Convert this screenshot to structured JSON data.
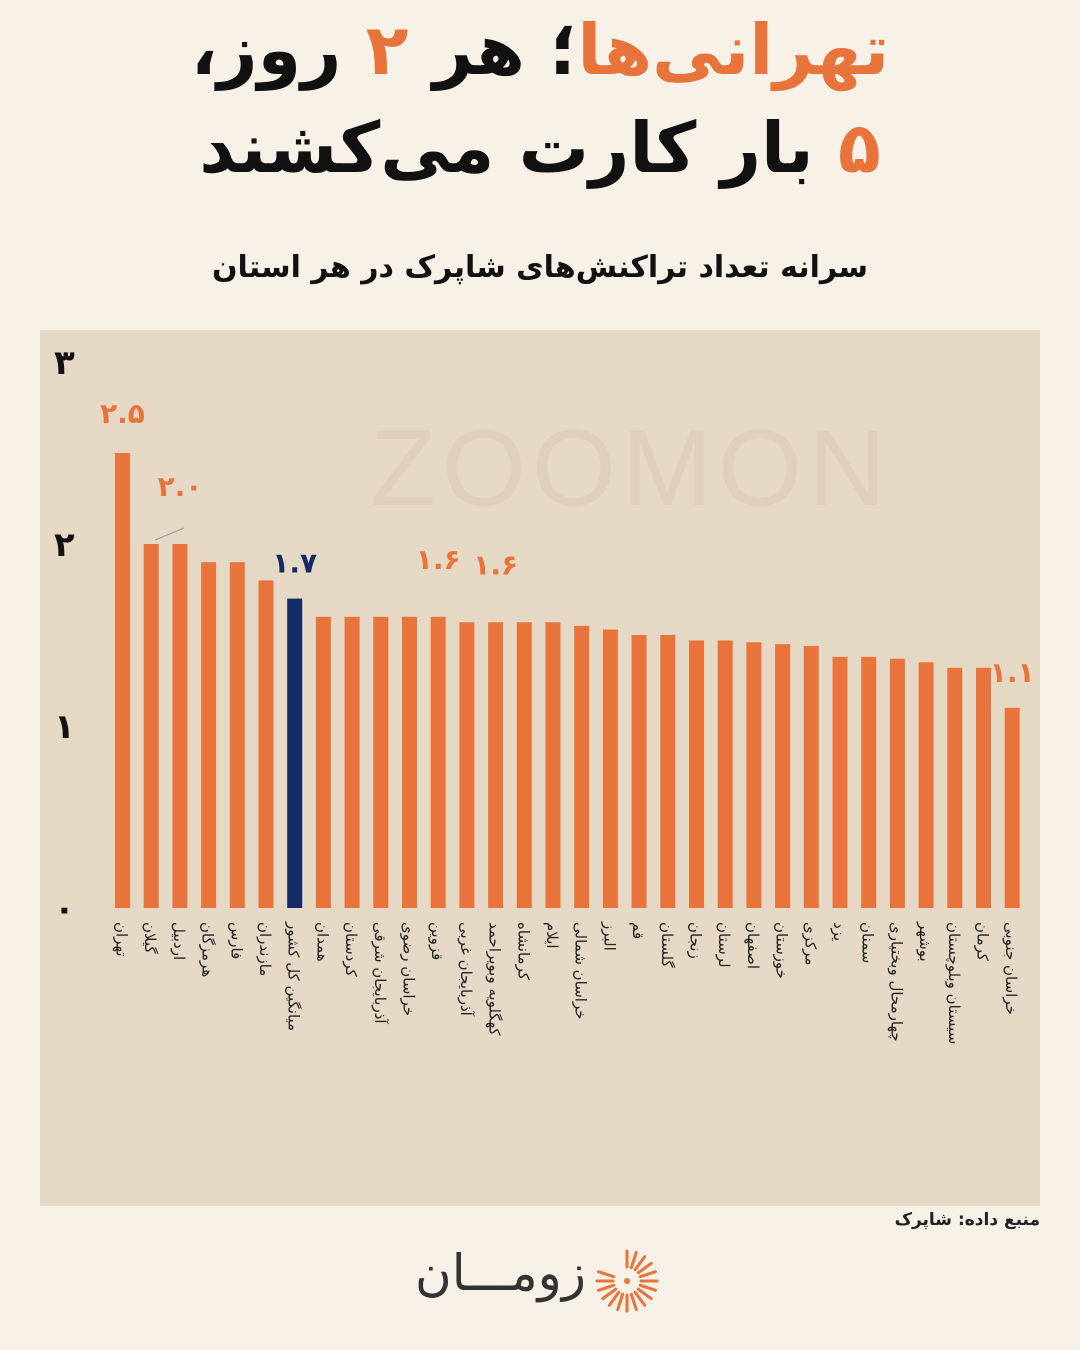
{
  "title": {
    "line1_orange": "تهرانی‌ها",
    "line1_sep": "؛ هر ",
    "line1_num": "۲",
    "line1_rest": " روز،",
    "line2_num": "۵",
    "line2_rest": " بار کارت می‌کشند"
  },
  "watermark": "ZOOMON",
  "source": "منبع داده: شاپرک",
  "brand": {
    "name": "زومـــان",
    "logo_icon": "sunburst-logo-icon"
  },
  "colors": {
    "bar": "#e8743b",
    "highlight": "#152b63",
    "panel": "#e5d8c5",
    "background": "#f8f1e8"
  },
  "chart_data": {
    "type": "bar",
    "title": "سرانه تعداد تراکنش‌های شاپرک در هر استان",
    "xlabel": "",
    "ylabel": "",
    "ylim": [
      0,
      3
    ],
    "yticks": [
      "۰",
      "۱",
      "۲",
      "۳"
    ],
    "grid": false,
    "categories": [
      "تهران",
      "گیلان",
      "اردبیل",
      "هرمزگان",
      "فارس",
      "مازندران",
      "میانگین کل کشور",
      "همدان",
      "کردستان",
      "آذربایجان شرقی",
      "خراسان رضوی",
      "قزوین",
      "آذربایجان غربی",
      "کهگلویه وبویراحمد",
      "کرمانشاه",
      "ایلام",
      "خراسان شمالی",
      "البرز",
      "قم",
      "گلستان",
      "زنجان",
      "لرستان",
      "اصفهان",
      "خوزستان",
      "مرکزی",
      "یزد",
      "سمنان",
      "چهارمحال وبختیاری",
      "بوشهر",
      "سیستان وبلوچستان",
      "کرمان",
      "خراسان جنوبی"
    ],
    "values": [
      2.5,
      2.0,
      2.0,
      1.9,
      1.9,
      1.8,
      1.7,
      1.6,
      1.6,
      1.6,
      1.6,
      1.6,
      1.57,
      1.57,
      1.57,
      1.57,
      1.55,
      1.53,
      1.5,
      1.5,
      1.47,
      1.47,
      1.46,
      1.45,
      1.44,
      1.38,
      1.38,
      1.37,
      1.35,
      1.32,
      1.32,
      1.1
    ],
    "highlight_index": 6,
    "value_labels": [
      {
        "index": 0,
        "text": "۲.۵"
      },
      {
        "index": 2,
        "text": "۲.۰"
      },
      {
        "index": 6,
        "text": "۱.۷"
      },
      {
        "index": 11,
        "text": "۱.۶"
      },
      {
        "index": 13,
        "text": "۱.۶"
      },
      {
        "index": 31,
        "text": "۱.۱"
      }
    ]
  }
}
